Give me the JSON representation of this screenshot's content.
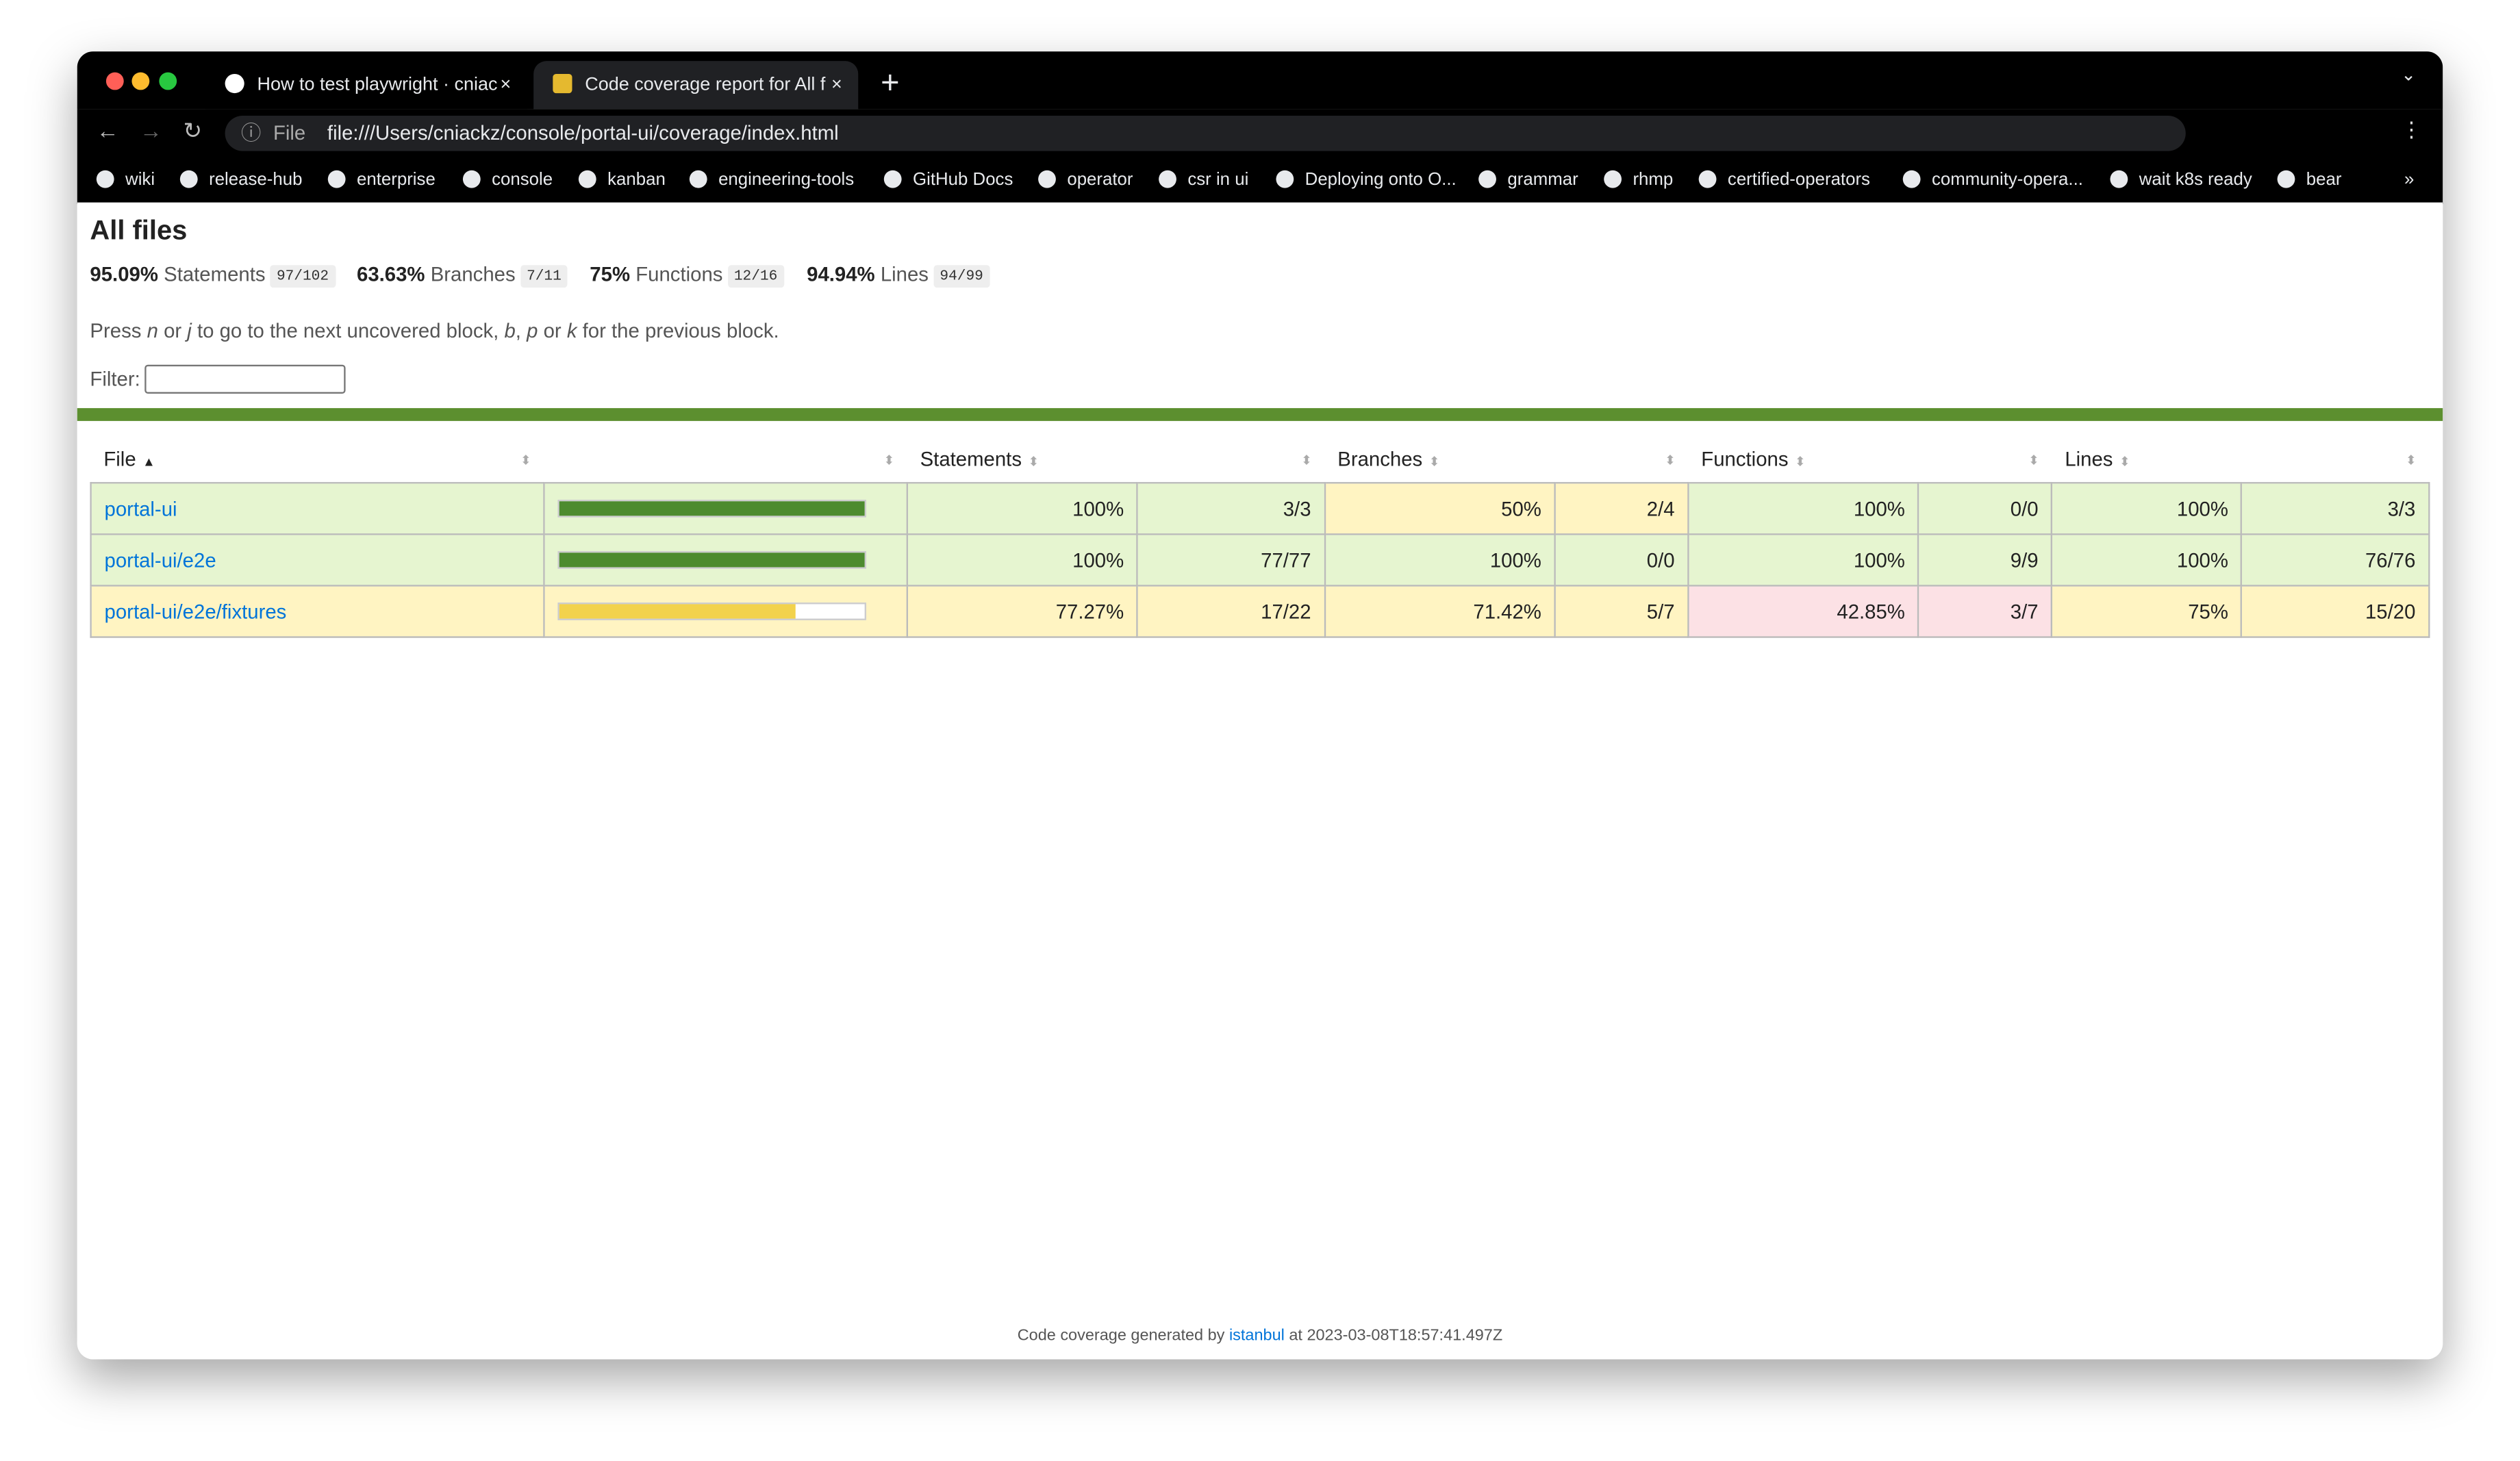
{
  "browser": {
    "tabs": [
      "How to test playwright · cniack",
      "Code coverage report for All fil"
    ],
    "url_chip": "File",
    "url": "file:///Users/cniackz/console/portal-ui/coverage/index.html",
    "bookmarks": [
      "wiki",
      "release-hub",
      "enterprise",
      "console",
      "kanban",
      "engineering-tools",
      "GitHub Docs",
      "operator",
      "csr in ui",
      "Deploying onto O...",
      "grammar",
      "rhmp",
      "certified-operators",
      "community-opera...",
      "wait k8s ready",
      "bear"
    ],
    "more": "»"
  },
  "header": {
    "title": "All files",
    "summary": [
      {
        "pct": "95.09%",
        "name": "Statements",
        "fraction": "97/102"
      },
      {
        "pct": "63.63%",
        "name": "Branches",
        "fraction": "7/11"
      },
      {
        "pct": "75%",
        "name": "Functions",
        "fraction": "12/16"
      },
      {
        "pct": "94.94%",
        "name": "Lines",
        "fraction": "94/99"
      }
    ],
    "help": [
      "Press ",
      "n",
      " or ",
      "j",
      " to go to the next uncovered block, ",
      "b",
      ", ",
      "p",
      " or ",
      "k",
      " for the previous block."
    ],
    "filter_label": "Filter:"
  },
  "table": {
    "columns": [
      "File",
      "Statements",
      "Branches",
      "Functions",
      "Lines"
    ],
    "rows": [
      {
        "file": "portal-ui",
        "statements": {
          "pct": 100,
          "label": "100%",
          "count": "3/3",
          "level": "high"
        },
        "branches": {
          "label": "50%",
          "count": "2/4",
          "level": "medium"
        },
        "functions": {
          "label": "100%",
          "count": "0/0",
          "level": "high"
        },
        "lines": {
          "label": "100%",
          "count": "3/3",
          "level": "high"
        }
      },
      {
        "file": "portal-ui/e2e",
        "statements": {
          "pct": 100,
          "label": "100%",
          "count": "77/77",
          "level": "high"
        },
        "branches": {
          "label": "100%",
          "count": "0/0",
          "level": "high"
        },
        "functions": {
          "label": "100%",
          "count": "9/9",
          "level": "high"
        },
        "lines": {
          "label": "100%",
          "count": "76/76",
          "level": "high"
        }
      },
      {
        "file": "portal-ui/e2e/fixtures",
        "statements": {
          "pct": 77.27,
          "label": "77.27%",
          "count": "17/22",
          "level": "medium"
        },
        "branches": {
          "label": "71.42%",
          "count": "5/7",
          "level": "medium"
        },
        "functions": {
          "label": "42.85%",
          "count": "3/7",
          "level": "low"
        },
        "lines": {
          "label": "75%",
          "count": "15/20",
          "level": "medium"
        }
      }
    ]
  },
  "footer": [
    "Code coverage generated by ",
    "istanbul",
    " at 2023-03-08T18:57:41.497Z"
  ]
}
